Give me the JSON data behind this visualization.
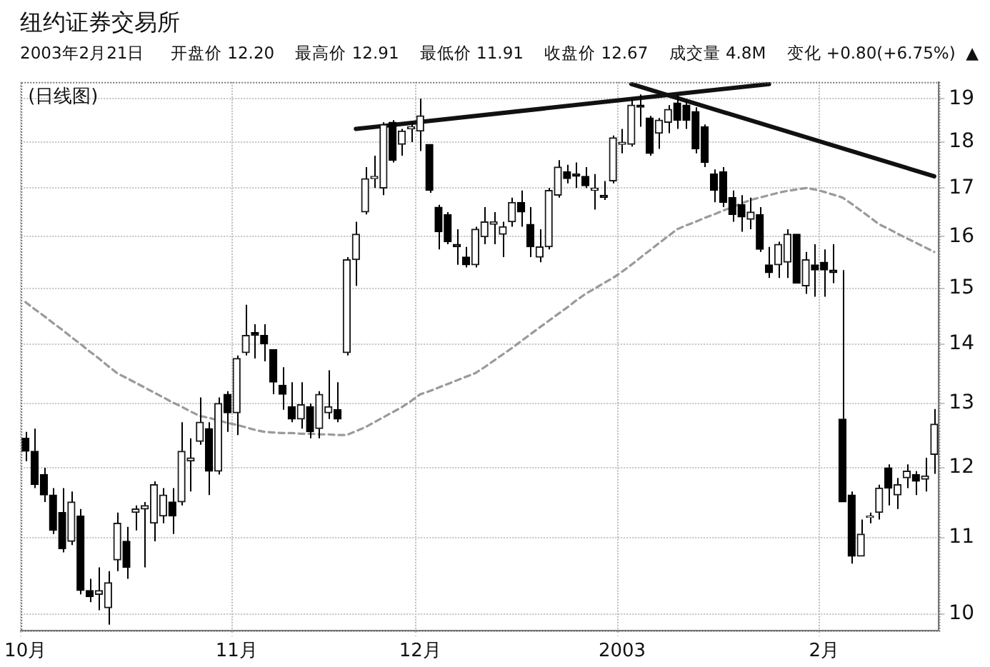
{
  "chart_data": {
    "type": "candlestick",
    "title": "纽约证券交易所",
    "subtitle": "2003年2月21日     开盘价 12.20    最高价 12.91    最低价 11.91    收盘价 12.67    成交量 4.8M    变化 +0.80(+6.75%)  ▲",
    "annotations": [
      "(日线图)"
    ],
    "categories": [
      "10月",
      null,
      null,
      null,
      null,
      null,
      null,
      null,
      null,
      null,
      null,
      null,
      null,
      null,
      null,
      null,
      null,
      null,
      null,
      null,
      null,
      null,
      null,
      "11月",
      null,
      null,
      null,
      null,
      null,
      null,
      null,
      null,
      null,
      null,
      null,
      null,
      null,
      null,
      null,
      null,
      null,
      null,
      null,
      "12月",
      null,
      null,
      null,
      null,
      null,
      null,
      null,
      null,
      null,
      null,
      null,
      null,
      null,
      null,
      null,
      null,
      null,
      null,
      null,
      null,
      null,
      "2003",
      null,
      null,
      null,
      null,
      null,
      null,
      null,
      null,
      null,
      null,
      null,
      null,
      null,
      null,
      null,
      null,
      null,
      null,
      null,
      null,
      null,
      "2月",
      null,
      null,
      null,
      null,
      null,
      null,
      null,
      null,
      null,
      null,
      null,
      null
    ],
    "ohlc": [
      [
        12.45,
        12.55,
        12.1,
        12.25
      ],
      [
        12.25,
        12.6,
        11.7,
        11.75
      ],
      [
        11.9,
        12.0,
        11.5,
        11.6
      ],
      [
        11.6,
        11.7,
        11.05,
        11.1
      ],
      [
        11.35,
        11.7,
        10.8,
        10.85
      ],
      [
        10.95,
        11.65,
        10.9,
        11.5
      ],
      [
        11.3,
        11.4,
        10.25,
        10.3
      ],
      [
        10.3,
        10.45,
        10.15,
        10.22
      ],
      [
        10.25,
        10.6,
        10.05,
        10.3
      ],
      [
        10.08,
        10.55,
        9.87,
        10.4
      ],
      [
        10.7,
        11.35,
        10.55,
        11.2
      ],
      [
        10.95,
        11.15,
        10.45,
        10.6
      ],
      [
        11.35,
        11.45,
        11.1,
        11.4
      ],
      [
        11.4,
        11.5,
        10.6,
        11.45
      ],
      [
        11.2,
        11.8,
        10.95,
        11.75
      ],
      [
        11.3,
        11.7,
        11.2,
        11.6
      ],
      [
        11.5,
        11.7,
        11.05,
        11.3
      ],
      [
        11.5,
        12.7,
        11.45,
        12.25
      ],
      [
        12.1,
        12.45,
        11.65,
        12.15
      ],
      [
        12.4,
        13.1,
        12.35,
        12.7
      ],
      [
        12.6,
        12.7,
        11.6,
        11.95
      ],
      [
        11.95,
        13.1,
        11.9,
        13.0
      ],
      [
        13.15,
        13.2,
        12.55,
        12.85
      ],
      [
        12.85,
        13.8,
        12.5,
        13.75
      ],
      [
        13.85,
        14.7,
        13.8,
        14.15
      ],
      [
        14.2,
        14.35,
        13.75,
        14.15
      ],
      [
        14.15,
        14.35,
        13.7,
        14.0
      ],
      [
        13.9,
        13.9,
        13.15,
        13.35
      ],
      [
        13.3,
        13.6,
        12.9,
        13.15
      ],
      [
        12.95,
        13.35,
        12.7,
        12.75
      ],
      [
        12.75,
        13.35,
        12.6,
        12.98
      ],
      [
        12.95,
        13.0,
        12.45,
        12.55
      ],
      [
        12.6,
        13.2,
        12.45,
        13.15
      ],
      [
        12.85,
        13.55,
        12.75,
        12.95
      ],
      [
        12.9,
        13.35,
        12.7,
        12.75
      ],
      [
        13.85,
        15.6,
        13.8,
        15.55
      ],
      [
        15.55,
        16.3,
        15.05,
        16.05
      ],
      [
        16.5,
        17.45,
        16.45,
        17.2
      ],
      [
        17.2,
        17.7,
        17.0,
        17.25
      ],
      [
        17.0,
        18.45,
        16.85,
        18.4
      ],
      [
        18.45,
        18.5,
        17.55,
        17.6
      ],
      [
        17.95,
        18.3,
        17.7,
        18.25
      ],
      [
        18.3,
        18.45,
        18.0,
        18.35
      ],
      [
        18.25,
        19.0,
        17.8,
        18.6
      ],
      [
        17.95,
        17.95,
        16.9,
        16.95
      ],
      [
        16.6,
        16.65,
        15.75,
        16.1
      ],
      [
        16.45,
        16.5,
        15.85,
        15.9
      ],
      [
        15.85,
        16.15,
        15.45,
        15.8
      ],
      [
        15.6,
        15.8,
        15.4,
        15.45
      ],
      [
        15.45,
        16.2,
        15.4,
        16.15
      ],
      [
        16.0,
        16.6,
        15.85,
        16.3
      ],
      [
        16.25,
        16.5,
        15.85,
        16.3
      ],
      [
        16.05,
        16.3,
        15.6,
        16.2
      ],
      [
        16.3,
        16.8,
        16.2,
        16.7
      ],
      [
        16.7,
        16.95,
        16.2,
        16.5
      ],
      [
        16.25,
        16.6,
        15.6,
        15.8
      ],
      [
        15.6,
        16.15,
        15.5,
        15.8
      ],
      [
        15.8,
        17.0,
        15.75,
        16.95
      ],
      [
        16.85,
        17.6,
        16.8,
        17.45
      ],
      [
        17.35,
        17.5,
        17.1,
        17.2
      ],
      [
        17.3,
        17.55,
        17.0,
        17.25
      ],
      [
        17.25,
        17.45,
        17.0,
        17.05
      ],
      [
        16.95,
        17.3,
        16.55,
        17.0
      ],
      [
        16.85,
        17.15,
        16.75,
        16.8
      ],
      [
        17.15,
        18.15,
        17.1,
        18.1
      ],
      [
        17.95,
        18.3,
        17.75,
        18.0
      ],
      [
        17.95,
        19.0,
        17.9,
        18.85
      ],
      [
        18.85,
        19.1,
        18.35,
        18.8
      ],
      [
        18.55,
        18.6,
        17.7,
        17.75
      ],
      [
        18.2,
        18.55,
        17.85,
        18.5
      ],
      [
        18.45,
        18.85,
        18.2,
        18.75
      ],
      [
        18.9,
        19.1,
        18.3,
        18.5
      ],
      [
        18.85,
        18.95,
        18.3,
        18.5
      ],
      [
        18.7,
        18.8,
        17.75,
        17.85
      ],
      [
        18.35,
        18.4,
        17.45,
        17.55
      ],
      [
        17.3,
        17.4,
        16.7,
        16.95
      ],
      [
        17.35,
        17.45,
        16.6,
        16.7
      ],
      [
        16.8,
        16.95,
        16.3,
        16.45
      ],
      [
        16.65,
        16.85,
        16.1,
        16.4
      ],
      [
        16.35,
        16.8,
        16.15,
        16.5
      ],
      [
        16.45,
        16.6,
        15.7,
        15.75
      ],
      [
        15.45,
        15.8,
        15.2,
        15.3
      ],
      [
        15.45,
        15.9,
        15.2,
        15.85
      ],
      [
        15.5,
        16.15,
        15.2,
        16.05
      ],
      [
        16.05,
        16.05,
        15.1,
        15.1
      ],
      [
        15.05,
        15.7,
        14.9,
        15.55
      ],
      [
        15.45,
        15.85,
        14.85,
        15.35
      ],
      [
        15.5,
        15.75,
        14.85,
        15.35
      ],
      [
        15.35,
        15.85,
        15.1,
        15.3
      ],
      [
        12.75,
        15.35,
        11.5,
        11.5
      ],
      [
        11.6,
        11.65,
        10.65,
        10.75
      ],
      [
        10.75,
        11.25,
        10.75,
        11.05
      ],
      [
        11.28,
        11.35,
        11.2,
        11.3
      ],
      [
        11.35,
        11.75,
        11.25,
        11.7
      ],
      [
        12.0,
        12.05,
        11.45,
        11.7
      ],
      [
        11.6,
        11.85,
        11.4,
        11.75
      ],
      [
        11.85,
        12.05,
        11.7,
        11.95
      ],
      [
        11.9,
        11.95,
        11.6,
        11.8
      ],
      [
        11.83,
        12.15,
        11.65,
        11.88
      ],
      [
        12.2,
        12.91,
        11.91,
        12.67
      ]
    ],
    "series": [
      {
        "type": "line",
        "color": "#9a9a9a",
        "line_style": "dashed",
        "values": [
          14.75,
          14.62,
          14.5,
          14.37,
          14.25,
          14.12,
          14.0,
          13.87,
          13.75,
          13.62,
          13.5,
          13.42,
          13.34,
          13.26,
          13.18,
          13.1,
          13.02,
          12.95,
          12.87,
          12.8,
          12.77,
          12.73,
          12.69,
          12.66,
          12.62,
          12.58,
          12.55,
          12.54,
          12.53,
          12.53,
          12.52,
          12.52,
          12.51,
          12.51,
          12.5,
          12.5,
          12.56,
          12.62,
          12.7,
          12.78,
          12.86,
          12.94,
          13.04,
          13.15,
          13.2,
          13.26,
          13.32,
          13.38,
          13.44,
          13.5,
          13.6,
          13.71,
          13.82,
          13.93,
          14.05,
          14.17,
          14.29,
          14.41,
          14.53,
          14.65,
          14.78,
          14.9,
          15.0,
          15.1,
          15.2,
          15.32,
          15.45,
          15.59,
          15.73,
          15.87,
          16.01,
          16.15,
          16.23,
          16.3,
          16.38,
          16.45,
          16.53,
          16.6,
          16.68,
          16.75,
          16.8,
          16.85,
          16.9,
          16.94,
          16.97,
          17.0,
          16.97,
          16.92,
          16.86,
          16.8,
          16.67,
          16.53,
          16.39,
          16.25,
          16.16,
          16.06,
          15.97,
          15.88,
          15.79,
          15.7
        ]
      },
      {
        "type": "line",
        "color": "#111111",
        "line_style": "solid",
        "values": [
          null,
          null,
          null,
          null,
          null,
          null,
          null,
          null,
          null,
          null,
          null,
          null,
          null,
          null,
          null,
          null,
          null,
          null,
          null,
          null,
          null,
          null,
          null,
          null,
          null,
          null,
          null,
          null,
          null,
          null,
          null,
          null,
          null,
          null,
          null,
          null,
          18.3,
          null,
          null,
          null,
          null,
          null,
          null,
          null,
          null,
          null,
          null,
          null,
          null,
          null,
          null,
          null,
          null,
          null,
          null,
          null,
          null,
          null,
          null,
          null,
          null,
          null,
          null,
          null,
          null,
          null,
          null,
          null,
          null,
          null,
          null,
          null,
          null,
          null,
          null,
          null,
          null,
          null,
          null,
          null,
          null,
          19.35,
          null,
          null,
          null,
          null,
          null,
          null,
          null,
          null,
          null,
          null,
          null,
          null,
          null,
          null,
          null,
          null,
          null,
          null
        ]
      },
      {
        "type": "line",
        "color": "#111111",
        "line_style": "solid",
        "values": [
          null,
          null,
          null,
          null,
          null,
          null,
          null,
          null,
          null,
          null,
          null,
          null,
          null,
          null,
          null,
          null,
          null,
          null,
          null,
          null,
          null,
          null,
          null,
          null,
          null,
          null,
          null,
          null,
          null,
          null,
          null,
          null,
          null,
          null,
          null,
          null,
          null,
          null,
          null,
          null,
          null,
          null,
          null,
          null,
          null,
          null,
          null,
          null,
          null,
          null,
          null,
          null,
          null,
          null,
          null,
          null,
          null,
          null,
          null,
          null,
          null,
          null,
          null,
          null,
          null,
          null,
          19.35,
          null,
          null,
          null,
          null,
          null,
          null,
          null,
          null,
          null,
          null,
          null,
          null,
          null,
          null,
          null,
          null,
          null,
          null,
          null,
          null,
          null,
          null,
          null,
          null,
          null,
          null,
          null,
          null,
          null,
          null,
          null,
          null,
          17.25
        ]
      }
    ],
    "ylim": [
      9.8,
      19.4
    ],
    "yticks": [
      10,
      11,
      12,
      13,
      14,
      15,
      16,
      17,
      18,
      19
    ],
    "log": "y",
    "grid": true
  }
}
